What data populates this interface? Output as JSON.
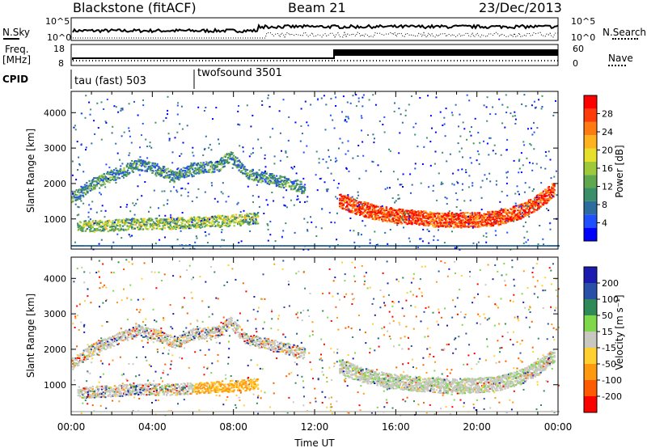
{
  "header": {
    "station": "Blackstone (fitACF)",
    "beam": "Beam 21",
    "date": "23/Dec/2013"
  },
  "top_panels": {
    "nsky_label": "N.Sky",
    "nsky_ticks": [
      "10^5",
      "10^0"
    ],
    "nsearch_label": "N.Search",
    "nsearch_ticks": [
      "10^5",
      "10^0"
    ],
    "freq_label_line1": "Freq.",
    "freq_label_line2": "[MHz]",
    "freq_ticks": [
      "18",
      "8"
    ],
    "nave_label": "Nave",
    "nave_ticks": [
      "60",
      "0"
    ],
    "cpid_label": "CPID",
    "cpid_modes": [
      {
        "label": "tau (fast) 503",
        "start_hour": 0
      },
      {
        "label": "twofsound 3501",
        "start_hour": 6
      }
    ]
  },
  "chart_data": [
    {
      "type": "heatmap",
      "panel": "power",
      "ylabel": "Slant Range [km]",
      "xlim": [
        0,
        24
      ],
      "ylim": [
        150,
        4600
      ],
      "yticks": [
        "1000",
        "2000",
        "3000",
        "4000"
      ],
      "colorbar_label": "Power [dB]",
      "colorbar_ticks": [
        "4",
        "8",
        "12",
        "16",
        "20",
        "24",
        "28"
      ],
      "colorscale": [
        "#0000ff",
        "#1f4fff",
        "#2e6b9e",
        "#3a8f6a",
        "#5fa84d",
        "#9dc93a",
        "#e6e02a",
        "#ffb21f",
        "#ff7a10",
        "#ff3b0a",
        "#ff0000"
      ],
      "scatter_bands": [
        {
          "x": [
            0.3,
            1.5,
            3,
            4.2,
            5.5,
            7,
            8.5,
            9.2
          ],
          "range": [
            800,
            820,
            880,
            880,
            900,
            950,
            1000,
            1050
          ],
          "level": 0.45
        },
        {
          "x": [
            0,
            1,
            2.2,
            3.3,
            4.3,
            5.1,
            6,
            7.2,
            7.8,
            8.6,
            9.4,
            10.5,
            11.5
          ],
          "range": [
            1600,
            2000,
            2300,
            2550,
            2400,
            2200,
            2450,
            2500,
            2800,
            2300,
            2200,
            2050,
            1900
          ],
          "level": 0.3
        },
        {
          "x": [
            13.2,
            14,
            15,
            16,
            17,
            18,
            19,
            20,
            21,
            22,
            23,
            23.8
          ],
          "range": [
            1550,
            1350,
            1200,
            1100,
            1050,
            1000,
            980,
            1000,
            1050,
            1200,
            1500,
            1850
          ],
          "level": 0.9
        }
      ]
    },
    {
      "type": "heatmap",
      "panel": "velocity",
      "xlabel": "Time UT",
      "ylabel": "Slant Range [km]",
      "xlim": [
        0,
        24
      ],
      "ylim": [
        150,
        4600
      ],
      "xticks": [
        "00:00",
        "04:00",
        "08:00",
        "12:00",
        "16:00",
        "20:00",
        "00:00"
      ],
      "yticks": [
        "1000",
        "2000",
        "3000",
        "4000"
      ],
      "colorbar_label": "Velocity [m s⁻¹]",
      "colorbar_ticks": [
        "200",
        "100",
        "50",
        "15",
        "-15",
        "-50",
        "-100",
        "-200"
      ],
      "colorscale": [
        "#ff0000",
        "#ff5a00",
        "#ff9a10",
        "#ffd030",
        "#c8c8c0",
        "#7ed84a",
        "#2e8b57",
        "#2a4fa8",
        "#1b1bb0"
      ]
    }
  ]
}
